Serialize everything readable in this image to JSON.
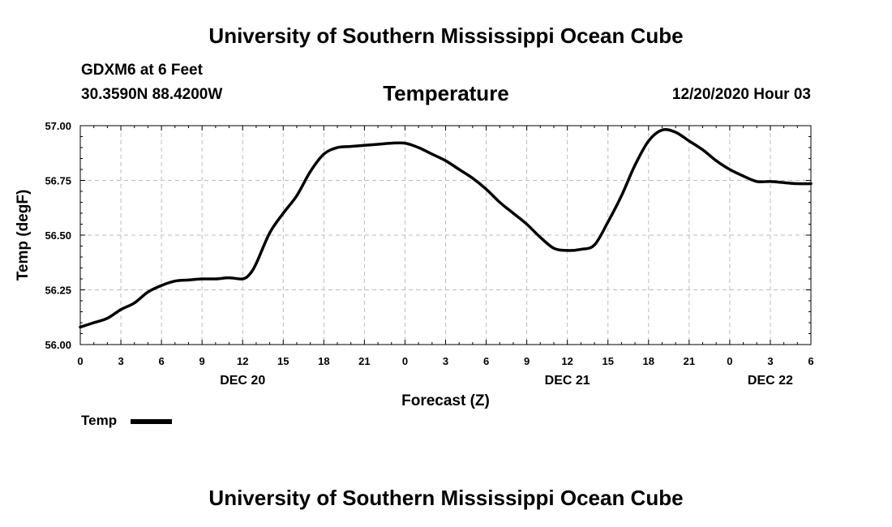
{
  "header": {
    "title": "University of Southern Mississippi Ocean Cube",
    "station": "GDXM6 at 6 Feet",
    "coords": "30.3590N 88.4200W",
    "variable": "Temperature",
    "timestamp": "12/20/2020 Hour 03"
  },
  "footer": {
    "title": "University of Southern Mississippi Ocean Cube"
  },
  "legend": {
    "label": "Temp",
    "color": "#000000"
  },
  "chart_data": {
    "type": "line",
    "title": "Temperature",
    "xlabel": "Forecast (Z)",
    "ylabel": "Temp (degF)",
    "xlim": [
      0,
      54
    ],
    "ylim": [
      56.0,
      57.0
    ],
    "grid": true,
    "x_ticks": [
      0,
      3,
      6,
      9,
      12,
      15,
      18,
      21,
      24,
      27,
      30,
      33,
      36,
      39,
      42,
      45,
      48,
      51,
      54
    ],
    "x_tick_labels": [
      "0",
      "3",
      "6",
      "9",
      "12",
      "15",
      "18",
      "21",
      "0",
      "3",
      "6",
      "9",
      "12",
      "15",
      "18",
      "21",
      "0",
      "3",
      "6"
    ],
    "y_ticks": [
      56.0,
      56.25,
      56.5,
      56.75,
      57.0
    ],
    "y_tick_labels": [
      "56.00",
      "56.25",
      "56.50",
      "56.75",
      "57.00"
    ],
    "date_labels": [
      {
        "x": 12,
        "label": "DEC 20"
      },
      {
        "x": 36,
        "label": "DEC 21"
      },
      {
        "x": 51,
        "label": "DEC 22"
      }
    ],
    "series": [
      {
        "name": "Temp",
        "x": [
          0,
          1,
          2,
          3,
          4,
          5,
          6,
          7,
          8,
          9,
          10,
          11,
          12,
          12.5,
          13,
          14,
          15,
          16,
          17,
          18,
          19,
          20,
          21,
          22,
          23,
          24,
          25,
          26,
          27,
          28,
          29,
          30,
          31,
          32,
          33,
          34,
          35,
          36,
          37,
          38,
          39,
          40,
          41,
          42,
          43,
          44,
          45,
          46,
          47,
          48,
          49,
          50,
          51,
          52,
          53,
          54
        ],
        "values": [
          56.08,
          56.1,
          56.12,
          56.16,
          56.19,
          56.24,
          56.27,
          56.29,
          56.295,
          56.3,
          56.3,
          56.305,
          56.3,
          56.32,
          56.37,
          56.51,
          56.6,
          56.68,
          56.79,
          56.87,
          56.9,
          56.905,
          56.91,
          56.915,
          56.92,
          56.92,
          56.9,
          56.87,
          56.84,
          56.8,
          56.76,
          56.71,
          56.65,
          56.6,
          56.55,
          56.49,
          56.44,
          56.43,
          56.435,
          56.455,
          56.56,
          56.68,
          56.82,
          56.93,
          56.98,
          56.97,
          56.93,
          56.89,
          56.84,
          56.8,
          56.77,
          56.745,
          56.745,
          56.74,
          56.735,
          56.735
        ]
      }
    ]
  }
}
